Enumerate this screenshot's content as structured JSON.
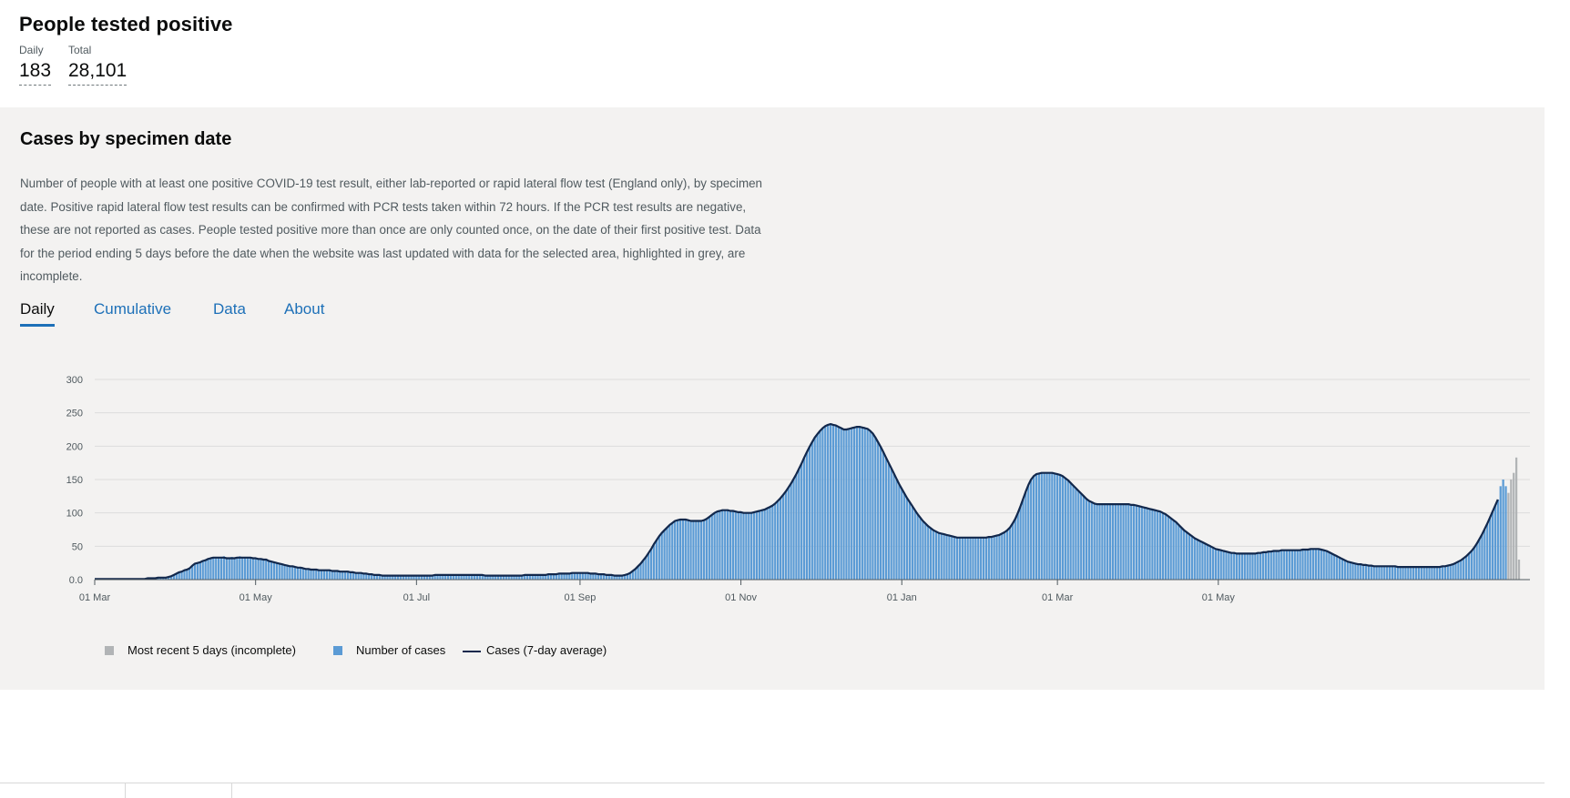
{
  "header": {
    "title": "People tested positive",
    "daily_label": "Daily",
    "daily_value": "183",
    "total_label": "Total",
    "total_value": "28,101"
  },
  "card": {
    "title": "Cases by specimen date",
    "description": "Number of people with at least one positive COVID-19 test result, either lab-reported or rapid lateral flow test (England only), by specimen date. Positive rapid lateral flow test results can be confirmed with PCR tests taken within 72 hours. If the PCR test results are negative, these are not reported as cases. People tested positive more than once are only counted once, on the date of their first positive test. Data for the period ending 5 days before the date when the website was last updated with data for the selected area, highlighted in grey, are incomplete.",
    "tabs": [
      {
        "label": "Daily",
        "active": true
      },
      {
        "label": "Cumulative",
        "active": false
      },
      {
        "label": "Data",
        "active": false
      },
      {
        "label": "About",
        "active": false
      }
    ]
  },
  "legend": {
    "incomplete": "Most recent 5 days (incomplete)",
    "cases": "Number of cases",
    "average": "Cases (7-day average)"
  },
  "colors": {
    "bars": "#5b9bd5",
    "incomplete": "#b1b4b6",
    "average_line": "#12284c",
    "card_bg": "#f3f2f1",
    "tab_link": "#1d70b8"
  },
  "chart_data": {
    "type": "bar",
    "title": "",
    "xlabel": "",
    "ylabel": "",
    "ylim": [
      0,
      300
    ],
    "yticks": [
      "0.0",
      "50",
      "100",
      "150",
      "200",
      "250",
      "300"
    ],
    "xticks": [
      "01 Mar",
      "01 May",
      "01 Jul",
      "01 Sep",
      "01 Nov",
      "01 Jan",
      "01 Mar",
      "01 May"
    ],
    "grid": true,
    "legend_position": "bottom-left",
    "start_date": "2020-03-01",
    "incomplete_days": 5,
    "series": [
      {
        "name": "Number of cases",
        "kind": "bar",
        "values": [
          0,
          0,
          0,
          0,
          0,
          0,
          0,
          0,
          1,
          1,
          1,
          1,
          1,
          1,
          1,
          1,
          1,
          1,
          1,
          1,
          2,
          2,
          2,
          2,
          3,
          3,
          3,
          3,
          4,
          5,
          7,
          9,
          11,
          12,
          14,
          15,
          17,
          21,
          24,
          25,
          26,
          28,
          29,
          31,
          32,
          34,
          34,
          32,
          34,
          35,
          32,
          33,
          34,
          33,
          34,
          35,
          33,
          33,
          34,
          34,
          33,
          32,
          32,
          31,
          30,
          30,
          28,
          27,
          26,
          25,
          25,
          23,
          22,
          21,
          21,
          20,
          19,
          18,
          18,
          17,
          16,
          16,
          15,
          15,
          14,
          14,
          14,
          14,
          14,
          14,
          13,
          13,
          13,
          12,
          12,
          12,
          12,
          11,
          11,
          10,
          10,
          10,
          9,
          9,
          8,
          8,
          7,
          7,
          7,
          6,
          6,
          6,
          6,
          6,
          6,
          6,
          6,
          6,
          6,
          6,
          6,
          6,
          6,
          6,
          6,
          6,
          6,
          6,
          6,
          7,
          7,
          7,
          7,
          7,
          7,
          7,
          7,
          7,
          7,
          7,
          7,
          7,
          7,
          7,
          7,
          7,
          7,
          7,
          6,
          6,
          6,
          6,
          6,
          6,
          6,
          6,
          6,
          6,
          6,
          6,
          6,
          6,
          6,
          7,
          7,
          7,
          7,
          7,
          7,
          7,
          7,
          7,
          8,
          8,
          8,
          8,
          9,
          9,
          9,
          9,
          9,
          10,
          10,
          10,
          10,
          10,
          10,
          10,
          9,
          9,
          9,
          8,
          8,
          8,
          7,
          7,
          7,
          6,
          6,
          6,
          6,
          7,
          8,
          10,
          13,
          16,
          20,
          24,
          29,
          34,
          40,
          46,
          53,
          59,
          65,
          70,
          74,
          78,
          82,
          85,
          88,
          89,
          90,
          90,
          90,
          89,
          88,
          88,
          88,
          88,
          88,
          89,
          91,
          94,
          97,
          100,
          102,
          103,
          104,
          104,
          104,
          103,
          103,
          102,
          101,
          101,
          100,
          100,
          100,
          100,
          101,
          102,
          103,
          104,
          105,
          107,
          109,
          111,
          114,
          118,
          122,
          127,
          132,
          138,
          144,
          151,
          158,
          166,
          174,
          183,
          191,
          199,
          206,
          213,
          218,
          223,
          227,
          230,
          232,
          233,
          232,
          231,
          229,
          227,
          225,
          225,
          226,
          227,
          228,
          229,
          229,
          228,
          227,
          226,
          223,
          219,
          213,
          206,
          199,
          191,
          183,
          175,
          167,
          159,
          151,
          143,
          136,
          129,
          122,
          116,
          110,
          104,
          98,
          93,
          88,
          84,
          80,
          77,
          74,
          72,
          70,
          69,
          68,
          67,
          66,
          65,
          64,
          63,
          63,
          63,
          63,
          63,
          63,
          63,
          63,
          63,
          63,
          63,
          63,
          64,
          64,
          65,
          66,
          67,
          69,
          71,
          74,
          78,
          84,
          91,
          100,
          110,
          121,
          132,
          142,
          150,
          155,
          158,
          159,
          160,
          160,
          160,
          160,
          160,
          159,
          158,
          157,
          155,
          152,
          149,
          145,
          141,
          137,
          133,
          129,
          125,
          121,
          118,
          116,
          114,
          113,
          113,
          113,
          113,
          113,
          113,
          113,
          113,
          113,
          113,
          113,
          113,
          113,
          112,
          112,
          111,
          110,
          109,
          108,
          107,
          106,
          105,
          104,
          103,
          102,
          100,
          98,
          95,
          92,
          89,
          86,
          82,
          78,
          74,
          71,
          68,
          65,
          62,
          60,
          58,
          56,
          54,
          52,
          50,
          48,
          46,
          45,
          44,
          43,
          42,
          41,
          40,
          40,
          39,
          39,
          39,
          39,
          39,
          39,
          39,
          39,
          40,
          40,
          41,
          41,
          42,
          42,
          43,
          43,
          43,
          44,
          44,
          44,
          44,
          44,
          44,
          44,
          44,
          45,
          45,
          45,
          46,
          46,
          46,
          46,
          45,
          44,
          43,
          41,
          39,
          37,
          35,
          33,
          31,
          29,
          27,
          26,
          25,
          24,
          23,
          23,
          22,
          22,
          21,
          21,
          20,
          20,
          20,
          20,
          20,
          20,
          20,
          20,
          20,
          19,
          19,
          19,
          19,
          19,
          19,
          19,
          19,
          19,
          19,
          19,
          19,
          19,
          19,
          19,
          19,
          19,
          20,
          20,
          21,
          22,
          23,
          25,
          27,
          29,
          32,
          35,
          39,
          43,
          48,
          54,
          61,
          68,
          76,
          84,
          93,
          102,
          111,
          120,
          140,
          150,
          140,
          130,
          150,
          160,
          183,
          30
        ]
      },
      {
        "name": "Cases (7-day average)",
        "kind": "line",
        "values": [
          1,
          1,
          1,
          1,
          1,
          1,
          1,
          1,
          1,
          1,
          1,
          1,
          1,
          1,
          1,
          1,
          1,
          1,
          1,
          1,
          2,
          2,
          2,
          2,
          3,
          3,
          3,
          3,
          4,
          5,
          7,
          9,
          11,
          12,
          14,
          15,
          17,
          21,
          24,
          25,
          26,
          28,
          29,
          31,
          32,
          33,
          33,
          33,
          33,
          33,
          32,
          32,
          32,
          32,
          33,
          33,
          33,
          33,
          33,
          33,
          32,
          32,
          31,
          31,
          30,
          30,
          28,
          27,
          26,
          25,
          24,
          23,
          22,
          21,
          20,
          20,
          19,
          18,
          18,
          17,
          16,
          16,
          15,
          15,
          15,
          14,
          14,
          14,
          14,
          14,
          13,
          13,
          13,
          12,
          12,
          12,
          12,
          11,
          11,
          10,
          10,
          10,
          9,
          9,
          8,
          8,
          7,
          7,
          7,
          6,
          6,
          6,
          6,
          6,
          6,
          6,
          6,
          6,
          6,
          6,
          6,
          6,
          6,
          6,
          6,
          6,
          6,
          6,
          6,
          7,
          7,
          7,
          7,
          7,
          7,
          7,
          7,
          7,
          7,
          7,
          7,
          7,
          7,
          7,
          7,
          7,
          7,
          7,
          6,
          6,
          6,
          6,
          6,
          6,
          6,
          6,
          6,
          6,
          6,
          6,
          6,
          6,
          6,
          7,
          7,
          7,
          7,
          7,
          7,
          7,
          7,
          7,
          8,
          8,
          8,
          8,
          9,
          9,
          9,
          9,
          9,
          10,
          10,
          10,
          10,
          10,
          10,
          10,
          9,
          9,
          9,
          8,
          8,
          8,
          7,
          7,
          7,
          6,
          6,
          6,
          6,
          7,
          8,
          10,
          13,
          16,
          20,
          24,
          29,
          34,
          40,
          46,
          53,
          59,
          65,
          70,
          74,
          78,
          82,
          85,
          88,
          89,
          90,
          90,
          90,
          89,
          88,
          88,
          88,
          88,
          88,
          89,
          91,
          94,
          97,
          100,
          102,
          103,
          104,
          104,
          104,
          103,
          103,
          102,
          101,
          101,
          100,
          100,
          100,
          100,
          101,
          102,
          103,
          104,
          105,
          107,
          109,
          111,
          114,
          118,
          122,
          127,
          132,
          138,
          144,
          151,
          158,
          166,
          174,
          183,
          191,
          199,
          206,
          213,
          218,
          223,
          227,
          230,
          232,
          233,
          232,
          231,
          229,
          227,
          225,
          225,
          226,
          227,
          228,
          229,
          229,
          228,
          227,
          226,
          223,
          219,
          213,
          206,
          199,
          191,
          183,
          175,
          167,
          159,
          151,
          143,
          136,
          129,
          122,
          116,
          110,
          104,
          98,
          93,
          88,
          84,
          80,
          77,
          74,
          72,
          70,
          69,
          68,
          67,
          66,
          65,
          64,
          63,
          63,
          63,
          63,
          63,
          63,
          63,
          63,
          63,
          63,
          63,
          63,
          64,
          64,
          65,
          66,
          67,
          69,
          71,
          74,
          78,
          84,
          91,
          100,
          110,
          121,
          132,
          142,
          150,
          155,
          158,
          159,
          160,
          160,
          160,
          160,
          160,
          159,
          158,
          157,
          155,
          152,
          149,
          145,
          141,
          137,
          133,
          129,
          125,
          121,
          118,
          116,
          114,
          113,
          113,
          113,
          113,
          113,
          113,
          113,
          113,
          113,
          113,
          113,
          113,
          113,
          112,
          112,
          111,
          110,
          109,
          108,
          107,
          106,
          105,
          104,
          103,
          102,
          100,
          98,
          95,
          92,
          89,
          86,
          82,
          78,
          74,
          71,
          68,
          65,
          62,
          60,
          58,
          56,
          54,
          52,
          50,
          48,
          46,
          45,
          44,
          43,
          42,
          41,
          40,
          40,
          39,
          39,
          39,
          39,
          39,
          39,
          39,
          39,
          40,
          40,
          41,
          41,
          42,
          42,
          43,
          43,
          43,
          44,
          44,
          44,
          44,
          44,
          44,
          44,
          44,
          45,
          45,
          45,
          46,
          46,
          46,
          46,
          45,
          44,
          43,
          41,
          39,
          37,
          35,
          33,
          31,
          29,
          27,
          26,
          25,
          24,
          23,
          23,
          22,
          22,
          21,
          21,
          20,
          20,
          20,
          20,
          20,
          20,
          20,
          20,
          20,
          19,
          19,
          19,
          19,
          19,
          19,
          19,
          19,
          19,
          19,
          19,
          19,
          19,
          19,
          19,
          19,
          19,
          20,
          20,
          21,
          22,
          23,
          25,
          27,
          29,
          32,
          35,
          39,
          43,
          48,
          54,
          61,
          68,
          76,
          84,
          93,
          102,
          111,
          120
        ]
      }
    ]
  }
}
